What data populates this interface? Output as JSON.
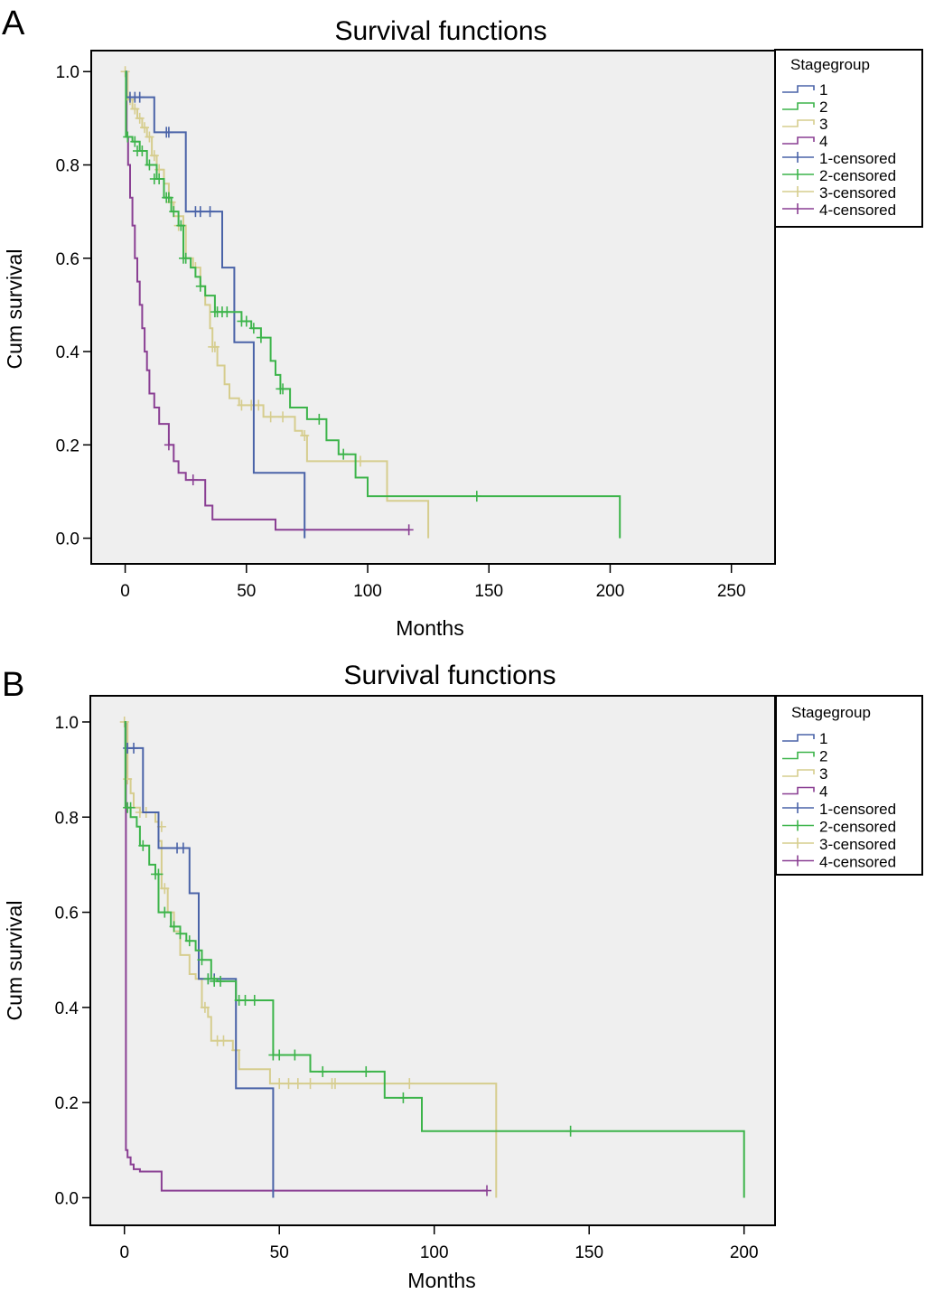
{
  "figure": {
    "panels": [
      "A",
      "B"
    ]
  },
  "legend_colors": {
    "1": "#4a63a8",
    "2": "#3cb44a",
    "3": "#d6cd8e",
    "4": "#8a3f93"
  },
  "chart_data": [
    {
      "type": "line",
      "subtype": "kaplan-meier step",
      "panel": "A",
      "title": "Survival functions",
      "xlabel": "Months",
      "ylabel": "Cum survival",
      "xlim": [
        -14,
        268
      ],
      "ylim": [
        -0.055,
        1.045
      ],
      "xticks": [
        0,
        50,
        100,
        150,
        200,
        250
      ],
      "xtick_labels": [
        "0",
        "50",
        "100",
        "150",
        "200",
        "250"
      ],
      "yticks": [
        0.0,
        0.2,
        0.4,
        0.6,
        0.8,
        1.0
      ],
      "ytick_labels": [
        "0.0",
        "0.2",
        "0.4",
        "0.6",
        "0.8",
        "1.0"
      ],
      "grid": false,
      "legend": {
        "title": "Stagegroup",
        "placement": "right-top",
        "entries": [
          "1",
          "2",
          "3",
          "4",
          "1-censored",
          "2-censored",
          "3-censored",
          "4-censored"
        ]
      },
      "series": [
        {
          "name": "1",
          "color": "#4a63a8",
          "steps": [
            [
              0,
              1.0
            ],
            [
              0.5,
              0.945
            ],
            [
              12,
              0.87
            ],
            [
              25,
              0.7
            ],
            [
              40,
              0.58
            ],
            [
              45,
              0.42
            ],
            [
              53,
              0.14
            ],
            [
              74,
              0.0
            ]
          ],
          "end": 74,
          "censored": [
            [
              2,
              0.945
            ],
            [
              4,
              0.945
            ],
            [
              6,
              0.945
            ],
            [
              17,
              0.87
            ],
            [
              18,
              0.87
            ],
            [
              29,
              0.7
            ],
            [
              31,
              0.7
            ],
            [
              35,
              0.7
            ]
          ]
        },
        {
          "name": "2",
          "color": "#3cb44a",
          "steps": [
            [
              0,
              1.0
            ],
            [
              0.3,
              0.86
            ],
            [
              3,
              0.85
            ],
            [
              6,
              0.83
            ],
            [
              9,
              0.8
            ],
            [
              13,
              0.77
            ],
            [
              16,
              0.73
            ],
            [
              19,
              0.7
            ],
            [
              22,
              0.67
            ],
            [
              24,
              0.6
            ],
            [
              27,
              0.58
            ],
            [
              29,
              0.56
            ],
            [
              31,
              0.54
            ],
            [
              33,
              0.52
            ],
            [
              37,
              0.485
            ],
            [
              48,
              0.465
            ],
            [
              52,
              0.45
            ],
            [
              56,
              0.43
            ],
            [
              60,
              0.38
            ],
            [
              62,
              0.35
            ],
            [
              64,
              0.32
            ],
            [
              68,
              0.28
            ],
            [
              75,
              0.255
            ],
            [
              83,
              0.21
            ],
            [
              88,
              0.18
            ],
            [
              95,
              0.13
            ],
            [
              100,
              0.09
            ],
            [
              204,
              0.0
            ]
          ],
          "end": 204,
          "censored": [
            [
              1,
              0.86
            ],
            [
              4,
              0.85
            ],
            [
              5,
              0.83
            ],
            [
              7,
              0.83
            ],
            [
              10,
              0.8
            ],
            [
              12,
              0.77
            ],
            [
              14,
              0.77
            ],
            [
              17,
              0.73
            ],
            [
              18,
              0.73
            ],
            [
              20,
              0.7
            ],
            [
              23,
              0.67
            ],
            [
              24,
              0.6
            ],
            [
              25,
              0.6
            ],
            [
              31,
              0.54
            ],
            [
              37,
              0.485
            ],
            [
              38,
              0.485
            ],
            [
              40,
              0.485
            ],
            [
              42,
              0.485
            ],
            [
              48,
              0.465
            ],
            [
              50,
              0.465
            ],
            [
              53,
              0.45
            ],
            [
              56,
              0.43
            ],
            [
              64,
              0.32
            ],
            [
              65,
              0.32
            ],
            [
              80,
              0.255
            ],
            [
              90,
              0.18
            ],
            [
              145,
              0.09
            ]
          ]
        },
        {
          "name": "3",
          "color": "#d6cd8e",
          "steps": [
            [
              0,
              1.0
            ],
            [
              1,
              0.94
            ],
            [
              3,
              0.92
            ],
            [
              5,
              0.9
            ],
            [
              7,
              0.88
            ],
            [
              9,
              0.86
            ],
            [
              11,
              0.82
            ],
            [
              13,
              0.79
            ],
            [
              16,
              0.76
            ],
            [
              18,
              0.72
            ],
            [
              20,
              0.69
            ],
            [
              24,
              0.67
            ],
            [
              25,
              0.6
            ],
            [
              28,
              0.58
            ],
            [
              31,
              0.54
            ],
            [
              33,
              0.5
            ],
            [
              35,
              0.45
            ],
            [
              36,
              0.41
            ],
            [
              38,
              0.37
            ],
            [
              41,
              0.33
            ],
            [
              43,
              0.3
            ],
            [
              47,
              0.285
            ],
            [
              57,
              0.26
            ],
            [
              70,
              0.23
            ],
            [
              73,
              0.22
            ],
            [
              75,
              0.165
            ],
            [
              108,
              0.08
            ],
            [
              125,
              0.0
            ]
          ],
          "end": 125,
          "censored": [
            [
              0,
              1.0
            ],
            [
              2,
              0.94
            ],
            [
              4,
              0.92
            ],
            [
              6,
              0.9
            ],
            [
              8,
              0.88
            ],
            [
              10,
              0.86
            ],
            [
              12,
              0.82
            ],
            [
              14,
              0.79
            ],
            [
              19,
              0.72
            ],
            [
              22,
              0.67
            ],
            [
              29,
              0.58
            ],
            [
              36,
              0.41
            ],
            [
              37,
              0.41
            ],
            [
              48,
              0.285
            ],
            [
              52,
              0.285
            ],
            [
              55,
              0.285
            ],
            [
              60,
              0.26
            ],
            [
              65,
              0.26
            ],
            [
              74,
              0.22
            ],
            [
              97,
              0.165
            ]
          ]
        },
        {
          "name": "4",
          "color": "#8a3f93",
          "steps": [
            [
              0,
              1.0
            ],
            [
              0.3,
              0.99
            ],
            [
              0.6,
              0.86
            ],
            [
              1.2,
              0.8
            ],
            [
              2,
              0.73
            ],
            [
              3,
              0.67
            ],
            [
              4,
              0.6
            ],
            [
              5,
              0.55
            ],
            [
              6,
              0.5
            ],
            [
              7,
              0.45
            ],
            [
              8,
              0.4
            ],
            [
              9,
              0.36
            ],
            [
              10,
              0.31
            ],
            [
              12,
              0.28
            ],
            [
              14,
              0.245
            ],
            [
              18,
              0.2
            ],
            [
              20,
              0.165
            ],
            [
              22,
              0.14
            ],
            [
              25,
              0.125
            ],
            [
              33,
              0.07
            ],
            [
              36,
              0.04
            ],
            [
              62,
              0.018
            ]
          ],
          "end": 117,
          "censored": [
            [
              18,
              0.2
            ],
            [
              28,
              0.125
            ],
            [
              117,
              0.018
            ]
          ]
        }
      ]
    },
    {
      "type": "line",
      "subtype": "kaplan-meier step",
      "panel": "B",
      "title": "Survival functions",
      "xlabel": "Months",
      "ylabel": "Cum survival",
      "xlim": [
        -11,
        210
      ],
      "ylim": [
        -0.058,
        1.055
      ],
      "xticks": [
        0,
        50,
        100,
        150,
        200
      ],
      "xtick_labels": [
        "0",
        "50",
        "100",
        "150",
        "200"
      ],
      "yticks": [
        0.0,
        0.2,
        0.4,
        0.6,
        0.8,
        1.0
      ],
      "ytick_labels": [
        "0.0",
        "0.2",
        "0.4",
        "0.6",
        "0.8",
        "1.0"
      ],
      "grid": false,
      "legend": {
        "title": "Stagegroup",
        "placement": "right-top",
        "entries": [
          "1",
          "2",
          "3",
          "4",
          "1-censored",
          "2-censored",
          "3-censored",
          "4-censored"
        ]
      },
      "series": [
        {
          "name": "1",
          "color": "#4a63a8",
          "steps": [
            [
              0,
              1.0
            ],
            [
              0.3,
              0.945
            ],
            [
              6,
              0.81
            ],
            [
              11,
              0.735
            ],
            [
              21,
              0.64
            ],
            [
              24,
              0.46
            ],
            [
              36,
              0.23
            ],
            [
              48,
              0.0
            ]
          ],
          "end": 48,
          "censored": [
            [
              1,
              0.945
            ],
            [
              3,
              0.945
            ],
            [
              17,
              0.735
            ],
            [
              19,
              0.735
            ],
            [
              27,
              0.46
            ],
            [
              29,
              0.46
            ]
          ]
        },
        {
          "name": "2",
          "color": "#3cb44a",
          "steps": [
            [
              0,
              1.0
            ],
            [
              0.3,
              0.82
            ],
            [
              2,
              0.8
            ],
            [
              4,
              0.78
            ],
            [
              5,
              0.74
            ],
            [
              8,
              0.7
            ],
            [
              10,
              0.68
            ],
            [
              11,
              0.6
            ],
            [
              15,
              0.57
            ],
            [
              18,
              0.555
            ],
            [
              20,
              0.54
            ],
            [
              23,
              0.52
            ],
            [
              25,
              0.5
            ],
            [
              28,
              0.46
            ],
            [
              30,
              0.455
            ],
            [
              36,
              0.415
            ],
            [
              48,
              0.3
            ],
            [
              60,
              0.265
            ],
            [
              84,
              0.21
            ],
            [
              96,
              0.14
            ],
            [
              200,
              0.0
            ]
          ],
          "end": 200,
          "censored": [
            [
              1,
              0.82
            ],
            [
              2,
              0.82
            ],
            [
              6,
              0.74
            ],
            [
              10,
              0.68
            ],
            [
              11,
              0.68
            ],
            [
              13,
              0.6
            ],
            [
              16,
              0.57
            ],
            [
              18,
              0.555
            ],
            [
              21,
              0.54
            ],
            [
              25,
              0.5
            ],
            [
              27,
              0.46
            ],
            [
              29,
              0.455
            ],
            [
              31,
              0.455
            ],
            [
              37,
              0.415
            ],
            [
              39,
              0.415
            ],
            [
              42,
              0.415
            ],
            [
              48,
              0.3
            ],
            [
              50,
              0.3
            ],
            [
              55,
              0.3
            ],
            [
              64,
              0.265
            ],
            [
              78,
              0.265
            ],
            [
              90,
              0.21
            ],
            [
              144,
              0.14
            ]
          ]
        },
        {
          "name": "3",
          "color": "#d6cd8e",
          "steps": [
            [
              0,
              1.0
            ],
            [
              1,
              0.88
            ],
            [
              2,
              0.85
            ],
            [
              3,
              0.82
            ],
            [
              5,
              0.81
            ],
            [
              10,
              0.79
            ],
            [
              11,
              0.75
            ],
            [
              12,
              0.65
            ],
            [
              14,
              0.6
            ],
            [
              16,
              0.56
            ],
            [
              18,
              0.51
            ],
            [
              21,
              0.47
            ],
            [
              23,
              0.46
            ],
            [
              25,
              0.4
            ],
            [
              27,
              0.38
            ],
            [
              28,
              0.33
            ],
            [
              35,
              0.31
            ],
            [
              37,
              0.27
            ],
            [
              47,
              0.24
            ],
            [
              120,
              0.0
            ]
          ],
          "end": 120,
          "censored": [
            [
              0,
              1.0
            ],
            [
              1,
              0.88
            ],
            [
              5,
              0.81
            ],
            [
              7,
              0.81
            ],
            [
              12,
              0.78
            ],
            [
              13,
              0.65
            ],
            [
              26,
              0.4
            ],
            [
              30,
              0.33
            ],
            [
              32,
              0.33
            ],
            [
              36,
              0.31
            ],
            [
              50,
              0.24
            ],
            [
              53,
              0.24
            ],
            [
              56,
              0.24
            ],
            [
              60,
              0.24
            ],
            [
              67,
              0.24
            ],
            [
              68,
              0.24
            ],
            [
              92,
              0.24
            ]
          ]
        },
        {
          "name": "4",
          "color": "#8a3f93",
          "steps": [
            [
              0,
              1.0
            ],
            [
              0.5,
              0.1
            ],
            [
              1,
              0.085
            ],
            [
              2,
              0.07
            ],
            [
              3,
              0.06
            ],
            [
              5,
              0.055
            ],
            [
              12,
              0.015
            ]
          ],
          "end": 117,
          "censored": [
            [
              117,
              0.015
            ]
          ]
        }
      ]
    }
  ]
}
